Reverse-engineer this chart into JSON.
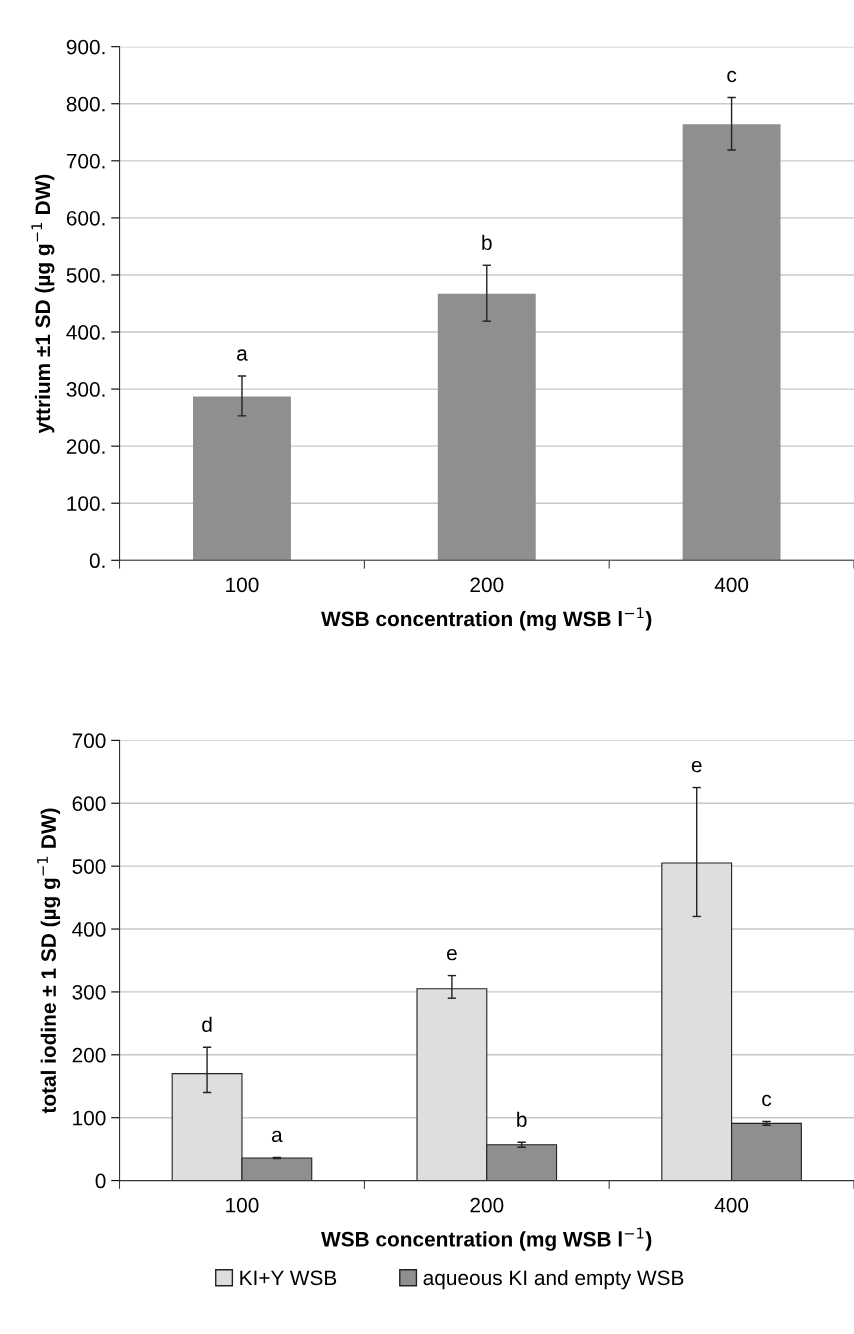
{
  "chart_data": [
    {
      "type": "bar",
      "categories": [
        "100",
        "200",
        "400"
      ],
      "xlabel": "WSB concentration (mg WSB l$^{−1}$)",
      "ylabel": "yttrium ±1 SD (µg g$^{−1}$ DW)",
      "series": [
        {
          "color": "#8f8f8f",
          "values": [
            287,
            467,
            764
          ],
          "errors": [
            [
              253,
              323
            ],
            [
              419,
              517
            ],
            [
              719,
              811
            ]
          ]
        }
      ],
      "ylim": [
        0,
        900
      ],
      "yticks": [
        {
          "value": 0,
          "label": "0."
        },
        {
          "value": 100,
          "label": "100."
        },
        {
          "value": 200,
          "label": "200."
        },
        {
          "value": 300,
          "label": "300."
        },
        {
          "value": 400,
          "label": "400."
        },
        {
          "value": 500,
          "label": "500."
        },
        {
          "value": 600,
          "label": "600."
        },
        {
          "value": 700,
          "label": "700."
        },
        {
          "value": 800,
          "label": "800."
        },
        {
          "value": 900,
          "label": "900."
        }
      ],
      "grid": "y",
      "legend": false,
      "annotations": [
        {
          "text": "a",
          "x": "100",
          "y": 287
        },
        {
          "text": "b",
          "x": "200",
          "y": 467
        },
        {
          "text": "c",
          "x": "400",
          "y": 764
        }
      ]
    },
    {
      "type": "bar",
      "categories": [
        "100",
        "200",
        "400"
      ],
      "xlabel": "WSB concentration (mg WSB l$^{−1}$)",
      "ylabel": "total iodine ± 1 SD (µg g$^{−1}$ DW)",
      "series": [
        {
          "name": "KI+Y WSB",
          "color": "#dedede",
          "values": [
            170,
            305,
            505
          ],
          "errors": [
            [
              140,
              212
            ],
            [
              290,
              326
            ],
            [
              420,
              625
            ]
          ]
        },
        {
          "name": "aqueous KI and empty WSB",
          "color": "#8f8f8f",
          "values": [
            36,
            57,
            91
          ],
          "errors": [
            [
              35,
              37
            ],
            [
              53,
              61
            ],
            [
              88,
              94
            ]
          ]
        }
      ],
      "ylim": [
        0,
        700
      ],
      "yticks": [
        0,
        100,
        200,
        300,
        400,
        500,
        600,
        700
      ],
      "grid": "y",
      "legend": "bottom",
      "annotations": [
        {
          "text": "d",
          "x": "100",
          "y": 170
        },
        {
          "text": "a",
          "x": "100",
          "y": 36
        },
        {
          "text": "e",
          "x": "200",
          "y": 305
        },
        {
          "text": "b",
          "x": "200",
          "y": 57
        },
        "e",
        {
          "text": "c",
          "x": "400",
          "y": 91
        }
      ]
    }
  ]
}
